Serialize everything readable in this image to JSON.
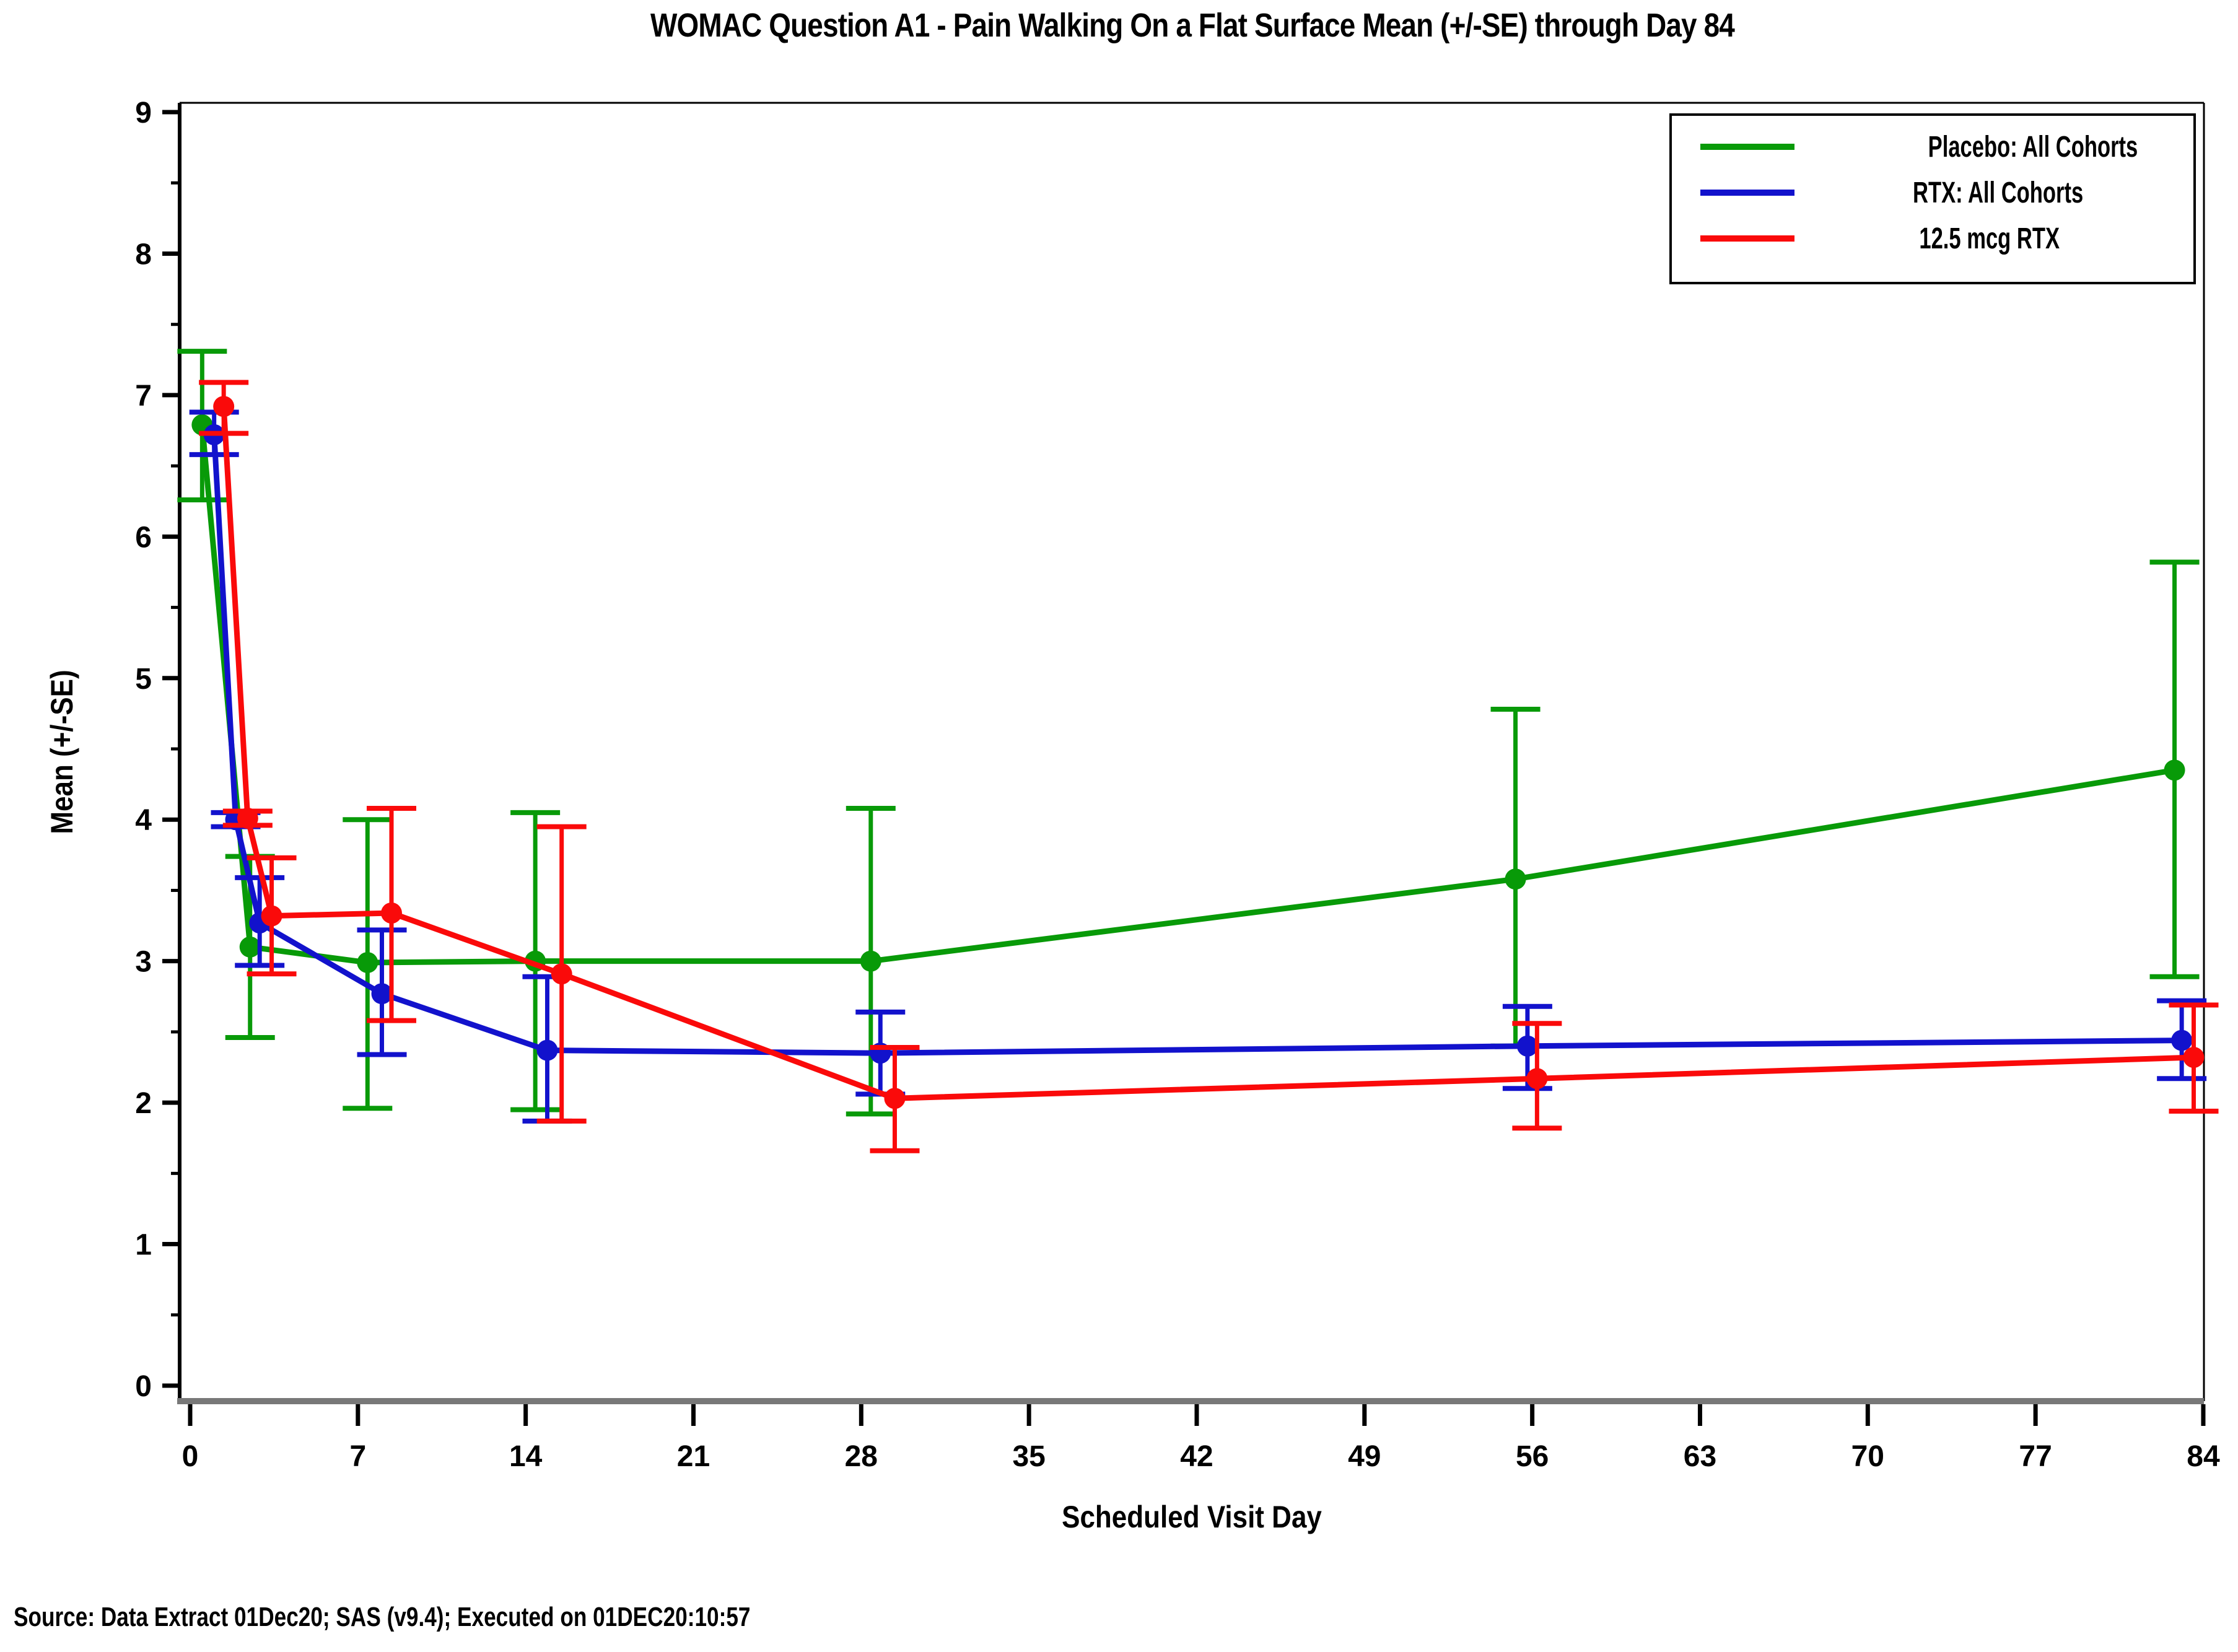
{
  "title": "WOMAC Question A1 - Pain Walking On a Flat Surface Mean (+/-SE) through Day 84",
  "source_note": "Source: Data Extract 01Dec20; SAS (v9.4); Executed on 01DEC20:10:57",
  "chart_data": {
    "type": "line",
    "title": "WOMAC Question A1 - Pain Walking On a Flat Surface Mean (+/-SE) through Day 84",
    "xlabel": "Scheduled Visit Day",
    "ylabel": "Mean (+/-SE)",
    "xlim": [
      0,
      84
    ],
    "ylim": [
      0,
      9
    ],
    "x_ticks": [
      0,
      7,
      14,
      21,
      28,
      35,
      42,
      49,
      56,
      63,
      70,
      77,
      84
    ],
    "y_ticks": [
      0,
      1,
      2,
      3,
      4,
      5,
      6,
      7,
      8,
      9
    ],
    "y_minor_step": 0.5,
    "grid": false,
    "legend_position": "top-right-inside",
    "error_bars": "+/-SE",
    "axis_color": "#000000",
    "baseline_color": "#787878",
    "series": [
      {
        "name": "Placebo: All Cohorts",
        "color": "#089A08",
        "marker": "circle",
        "points": [
          {
            "x": 0.5,
            "y": 6.79,
            "lo": 6.26,
            "hi": 7.31
          },
          {
            "x": 2.5,
            "y": 3.1,
            "lo": 2.46,
            "hi": 3.74
          },
          {
            "x": 7.4,
            "y": 2.99,
            "lo": 1.96,
            "hi": 4.0
          },
          {
            "x": 14.4,
            "y": 3.0,
            "lo": 1.95,
            "hi": 4.05
          },
          {
            "x": 28.4,
            "y": 3.0,
            "lo": 1.92,
            "hi": 4.08
          },
          {
            "x": 55.3,
            "y": 3.58,
            "lo": 2.4,
            "hi": 4.78
          },
          {
            "x": 82.8,
            "y": 4.35,
            "lo": 2.89,
            "hi": 5.82
          }
        ]
      },
      {
        "name": "RTX: All Cohorts",
        "color": "#1212CC",
        "marker": "circle",
        "points": [
          {
            "x": 1.0,
            "y": 6.72,
            "lo": 6.58,
            "hi": 6.88
          },
          {
            "x": 1.9,
            "y": 4.0,
            "lo": 3.95,
            "hi": 4.05
          },
          {
            "x": 2.9,
            "y": 3.27,
            "lo": 2.97,
            "hi": 3.59
          },
          {
            "x": 8.0,
            "y": 2.77,
            "lo": 2.34,
            "hi": 3.22
          },
          {
            "x": 14.9,
            "y": 2.37,
            "lo": 1.87,
            "hi": 2.89
          },
          {
            "x": 28.8,
            "y": 2.35,
            "lo": 2.06,
            "hi": 2.64
          },
          {
            "x": 55.8,
            "y": 2.4,
            "lo": 2.1,
            "hi": 2.68
          },
          {
            "x": 83.1,
            "y": 2.44,
            "lo": 2.17,
            "hi": 2.72
          }
        ]
      },
      {
        "name": "12.5 mcg RTX",
        "color": "#FA0A0A",
        "marker": "circle",
        "points": [
          {
            "x": 1.4,
            "y": 6.92,
            "lo": 6.73,
            "hi": 7.09
          },
          {
            "x": 2.4,
            "y": 4.01,
            "lo": 3.96,
            "hi": 4.06
          },
          {
            "x": 3.4,
            "y": 3.32,
            "lo": 2.91,
            "hi": 3.73
          },
          {
            "x": 8.4,
            "y": 3.34,
            "lo": 2.58,
            "hi": 4.08
          },
          {
            "x": 15.5,
            "y": 2.91,
            "lo": 1.87,
            "hi": 3.95
          },
          {
            "x": 29.4,
            "y": 2.03,
            "lo": 1.66,
            "hi": 2.39
          },
          {
            "x": 56.2,
            "y": 2.17,
            "lo": 1.82,
            "hi": 2.56
          },
          {
            "x": 83.6,
            "y": 2.32,
            "lo": 1.94,
            "hi": 2.69
          }
        ]
      }
    ]
  }
}
